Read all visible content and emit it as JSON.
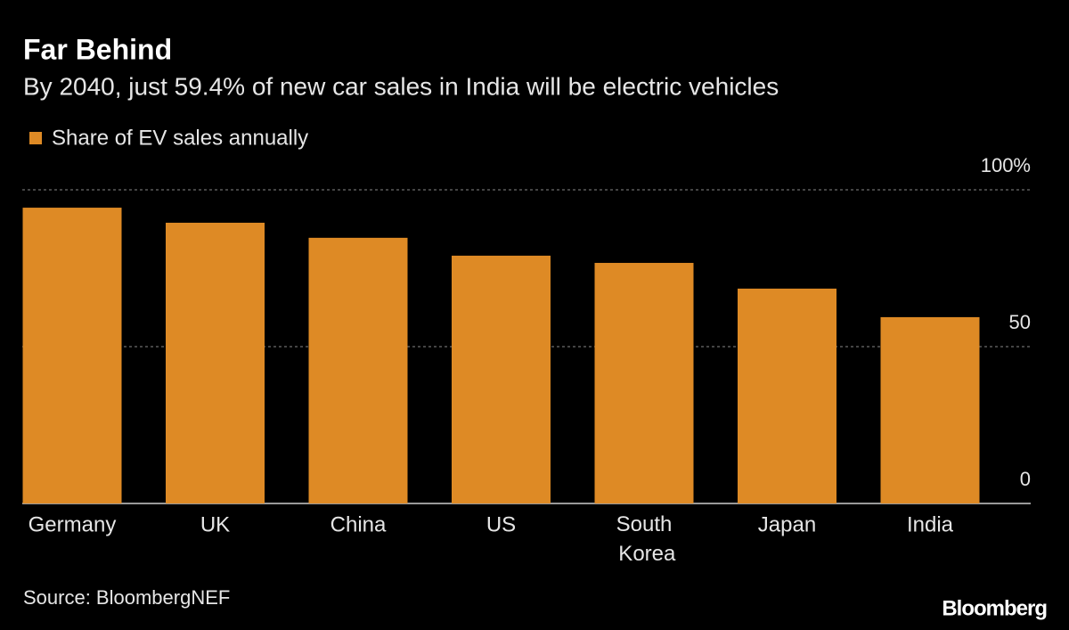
{
  "chart_data": {
    "type": "bar",
    "title": "Far Behind",
    "subtitle": "By 2040, just 59.4% of new car sales in India will be electric vehicles",
    "categories": [
      "Germany",
      "UK",
      "China",
      "US",
      "South Korea",
      "Japan",
      "India"
    ],
    "series": [
      {
        "name": "Share of EV sales annually",
        "color": "#de8a25",
        "values": [
          94.3,
          89.5,
          84.7,
          79.0,
          76.7,
          68.5,
          59.4
        ]
      }
    ],
    "ylim": [
      0,
      100
    ],
    "yticks": [
      0,
      50,
      {
        "value": 100,
        "label": "100%"
      }
    ],
    "grid": true,
    "source": "Source: BloombergNEF",
    "brand": "Bloomberg"
  }
}
